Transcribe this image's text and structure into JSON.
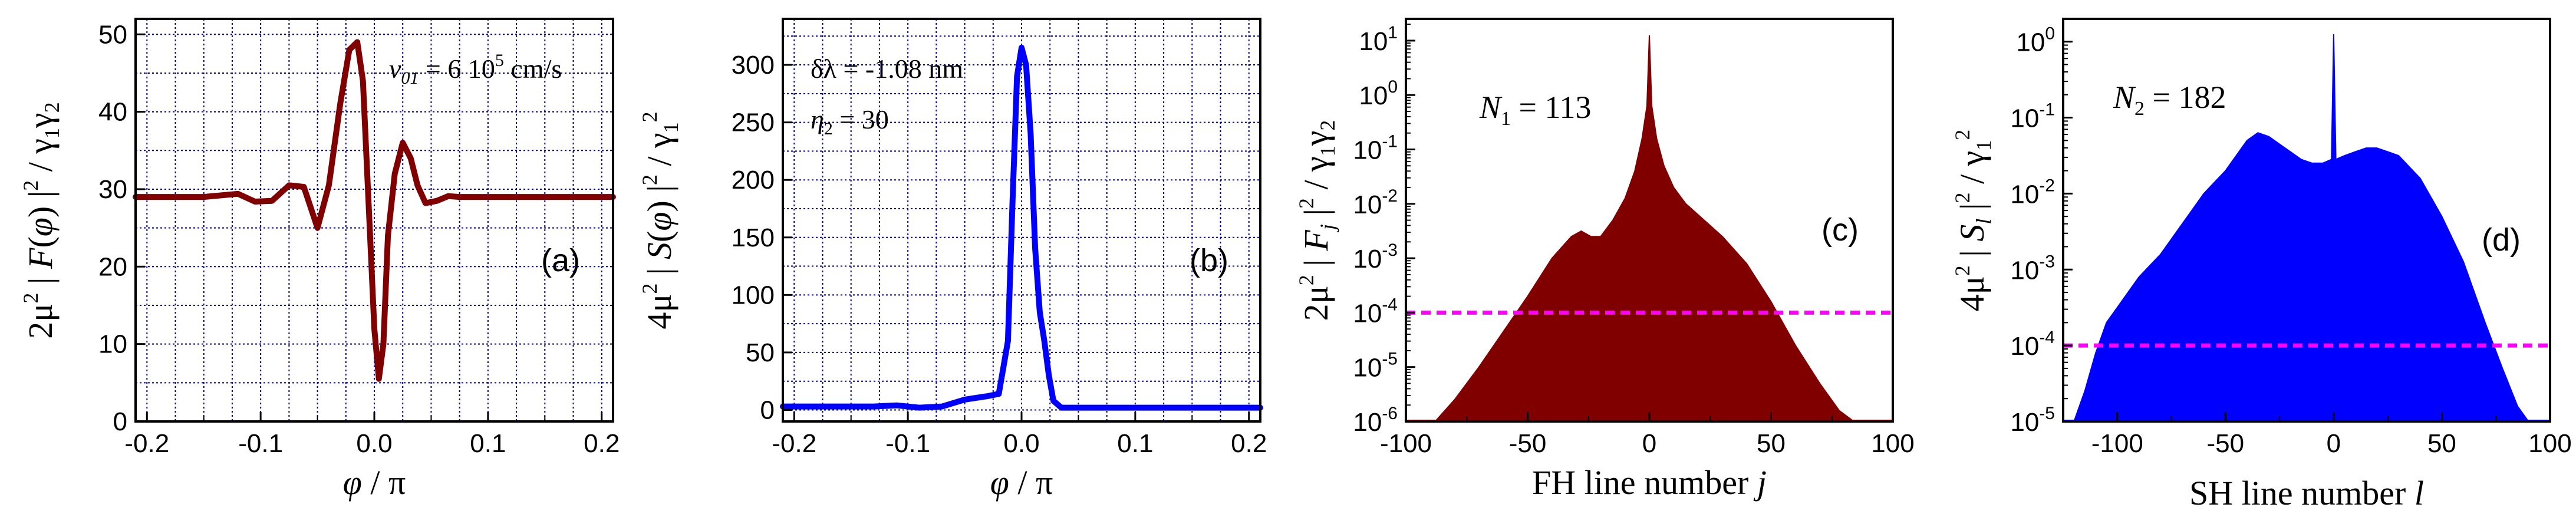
{
  "colors": {
    "dark_red": "#800000",
    "blue": "#0000ff",
    "magenta": "#ff00ff",
    "grid": "#00008b"
  },
  "chart_data": [
    {
      "type": "line",
      "panel_label": "(a)",
      "ylabel": "2μ² | F(φ) |² / γ₁γ₂",
      "ylabel_parts": [
        "2μ",
        "2",
        " | ",
        "F",
        "(",
        "φ",
        ") |",
        "2",
        " / γ",
        "1",
        "γ",
        "2"
      ],
      "xlabel": "φ / π",
      "xlabel_parts": [
        "φ",
        " / π"
      ],
      "xlim": [
        -0.21,
        0.21
      ],
      "ylim": [
        0,
        52
      ],
      "xticks": [
        -0.2,
        -0.1,
        0.0,
        0.1,
        0.2
      ],
      "xtick_labels": [
        "-0.2",
        "-0.1",
        "0.0",
        "0.1",
        "0.2"
      ],
      "yticks": [
        0,
        10,
        20,
        30,
        40,
        50
      ],
      "ytick_labels": [
        "0",
        "10",
        "20",
        "30",
        "40",
        "50"
      ],
      "grid": true,
      "annotation": "v01 = 6  10⁵ cm/s",
      "annotation_parts": [
        "v",
        "01",
        " = 6  10",
        "5",
        " cm/s"
      ],
      "series": [
        {
          "name": "|F(φ)|²",
          "color": "#800000",
          "x": [
            -0.21,
            -0.15,
            -0.12,
            -0.105,
            -0.09,
            -0.075,
            -0.062,
            -0.05,
            -0.04,
            -0.03,
            -0.022,
            -0.015,
            -0.01,
            -0.005,
            0.0,
            0.004,
            0.008,
            0.012,
            0.018,
            0.025,
            0.032,
            0.038,
            0.045,
            0.055,
            0.065,
            0.075,
            0.085,
            0.1,
            0.15,
            0.21
          ],
          "y": [
            29,
            29,
            29.4,
            28.4,
            28.5,
            30.5,
            30.3,
            25,
            30.5,
            41,
            48,
            49,
            44,
            28,
            12,
            5.5,
            10,
            24,
            32,
            36,
            34,
            30.5,
            28.2,
            28.5,
            29.1,
            29,
            29,
            29,
            29,
            29
          ]
        }
      ]
    },
    {
      "type": "line",
      "panel_label": "(b)",
      "ylabel": "4μ² | S(φ) |² / γ₁²",
      "ylabel_parts": [
        "4μ",
        "2",
        " | ",
        "S",
        "(",
        "φ",
        ") |",
        "2",
        " / γ",
        "1",
        "2"
      ],
      "xlabel": "φ / π",
      "xlabel_parts": [
        "φ",
        " / π"
      ],
      "xlim": [
        -0.21,
        0.21
      ],
      "ylim": [
        -10,
        340
      ],
      "xticks": [
        -0.2,
        -0.1,
        0.0,
        0.1,
        0.2
      ],
      "xtick_labels": [
        "-0.2",
        "-0.1",
        "0.0",
        "0.1",
        "0.2"
      ],
      "yticks": [
        0,
        50,
        100,
        150,
        200,
        250,
        300
      ],
      "ytick_labels": [
        "0",
        "50",
        "100",
        "150",
        "200",
        "250",
        "300"
      ],
      "grid": true,
      "annotation_line1": "δλ = -1.08 nm",
      "annotation_line2": "η2 = 30",
      "annotation_line2_parts": [
        "η",
        "2",
        " = 30"
      ],
      "series": [
        {
          "name": "|S(φ)|²",
          "color": "#0000ff",
          "x": [
            -0.21,
            -0.13,
            -0.11,
            -0.09,
            -0.07,
            -0.05,
            -0.03,
            -0.02,
            -0.012,
            -0.008,
            -0.004,
            0.0,
            0.004,
            0.008,
            0.012,
            0.016,
            0.02,
            0.024,
            0.028,
            0.035,
            0.05,
            0.21
          ],
          "y": [
            3,
            3,
            4,
            2,
            3,
            9,
            12,
            14,
            60,
            180,
            290,
            315,
            300,
            240,
            140,
            85,
            60,
            30,
            8,
            2,
            2,
            2
          ]
        }
      ]
    },
    {
      "type": "area",
      "panel_label": "(c)",
      "ylabel": "2μ² | Fj |² / γ₁γ₂",
      "ylabel_parts": [
        "2μ",
        "2",
        " | ",
        "F",
        "j",
        " |",
        "2",
        " / γ",
        "1",
        "γ",
        "2"
      ],
      "xlabel": "FH line number j",
      "xlabel_parts": [
        "FH line number ",
        "j"
      ],
      "xscale": "linear",
      "yscale": "log",
      "xlim": [
        -100,
        100
      ],
      "ylim_log10": [
        -6,
        1.4
      ],
      "xticks": [
        -100,
        -50,
        0,
        50,
        100
      ],
      "xtick_labels": [
        "-100",
        "-50",
        "0",
        "50",
        "100"
      ],
      "ytick_exponents": [
        -6,
        -5,
        -4,
        -3,
        -2,
        -1,
        0,
        1
      ],
      "ytick_base": "10",
      "annotation": "N1 = 113",
      "annotation_parts": [
        "N",
        "1",
        " = 113"
      ],
      "threshold_log10": -4,
      "series": [
        {
          "name": "|Fj|²",
          "color": "#800000",
          "x": [
            -88,
            -80,
            -70,
            -60,
            -50,
            -40,
            -32,
            -28,
            -24,
            -20,
            -15,
            -10,
            -6,
            -3,
            -1,
            0,
            1,
            3,
            6,
            10,
            15,
            20,
            30,
            40,
            50,
            60,
            70,
            78,
            84
          ],
          "log10_y": [
            -6,
            -5.6,
            -5.0,
            -4.35,
            -3.7,
            -3.0,
            -2.6,
            -2.5,
            -2.6,
            -2.6,
            -2.3,
            -1.9,
            -1.4,
            -0.8,
            -0.2,
            1.1,
            -0.2,
            -0.8,
            -1.3,
            -1.7,
            -2.0,
            -2.2,
            -2.6,
            -3.1,
            -3.8,
            -4.6,
            -5.3,
            -5.8,
            -6
          ]
        }
      ]
    },
    {
      "type": "area",
      "panel_label": "(d)",
      "ylabel": "4μ² | Sl |² / γ₁²",
      "ylabel_parts": [
        "4μ",
        "2",
        " | ",
        "S",
        "l",
        " |",
        "2",
        " / γ",
        "1",
        "2"
      ],
      "xlabel": "SH line number l",
      "xlabel_parts": [
        "SH line number ",
        "l"
      ],
      "xscale": "linear",
      "yscale": "log",
      "xlim": [
        -125,
        100
      ],
      "ylim_log10": [
        -5,
        0.3
      ],
      "xticks": [
        -100,
        -50,
        0,
        50,
        100
      ],
      "xtick_labels": [
        "-100",
        "-50",
        "0",
        "50",
        "100"
      ],
      "ytick_exponents": [
        -5,
        -4,
        -3,
        -2,
        -1,
        0
      ],
      "ytick_base": "10",
      "annotation": "N2 = 182",
      "annotation_parts": [
        "N",
        "2",
        " = 182"
      ],
      "threshold_log10": -4,
      "series": [
        {
          "name": "|Sl|²",
          "color": "#0000ff",
          "x": [
            -120,
            -115,
            -110,
            -105,
            -100,
            -95,
            -90,
            -80,
            -70,
            -60,
            -50,
            -40,
            -35,
            -30,
            -25,
            -20,
            -15,
            -10,
            -5,
            -1,
            0,
            1,
            5,
            10,
            15,
            20,
            25,
            30,
            40,
            50,
            60,
            70,
            78,
            85,
            90
          ],
          "log10_y": [
            -5,
            -4.6,
            -4.1,
            -3.7,
            -3.5,
            -3.3,
            -3.1,
            -2.8,
            -2.4,
            -2.0,
            -1.7,
            -1.3,
            -1.2,
            -1.25,
            -1.35,
            -1.45,
            -1.55,
            -1.6,
            -1.6,
            -1.55,
            0.1,
            -1.55,
            -1.5,
            -1.45,
            -1.4,
            -1.4,
            -1.45,
            -1.5,
            -1.8,
            -2.3,
            -2.9,
            -3.7,
            -4.3,
            -4.8,
            -5
          ]
        }
      ]
    }
  ]
}
